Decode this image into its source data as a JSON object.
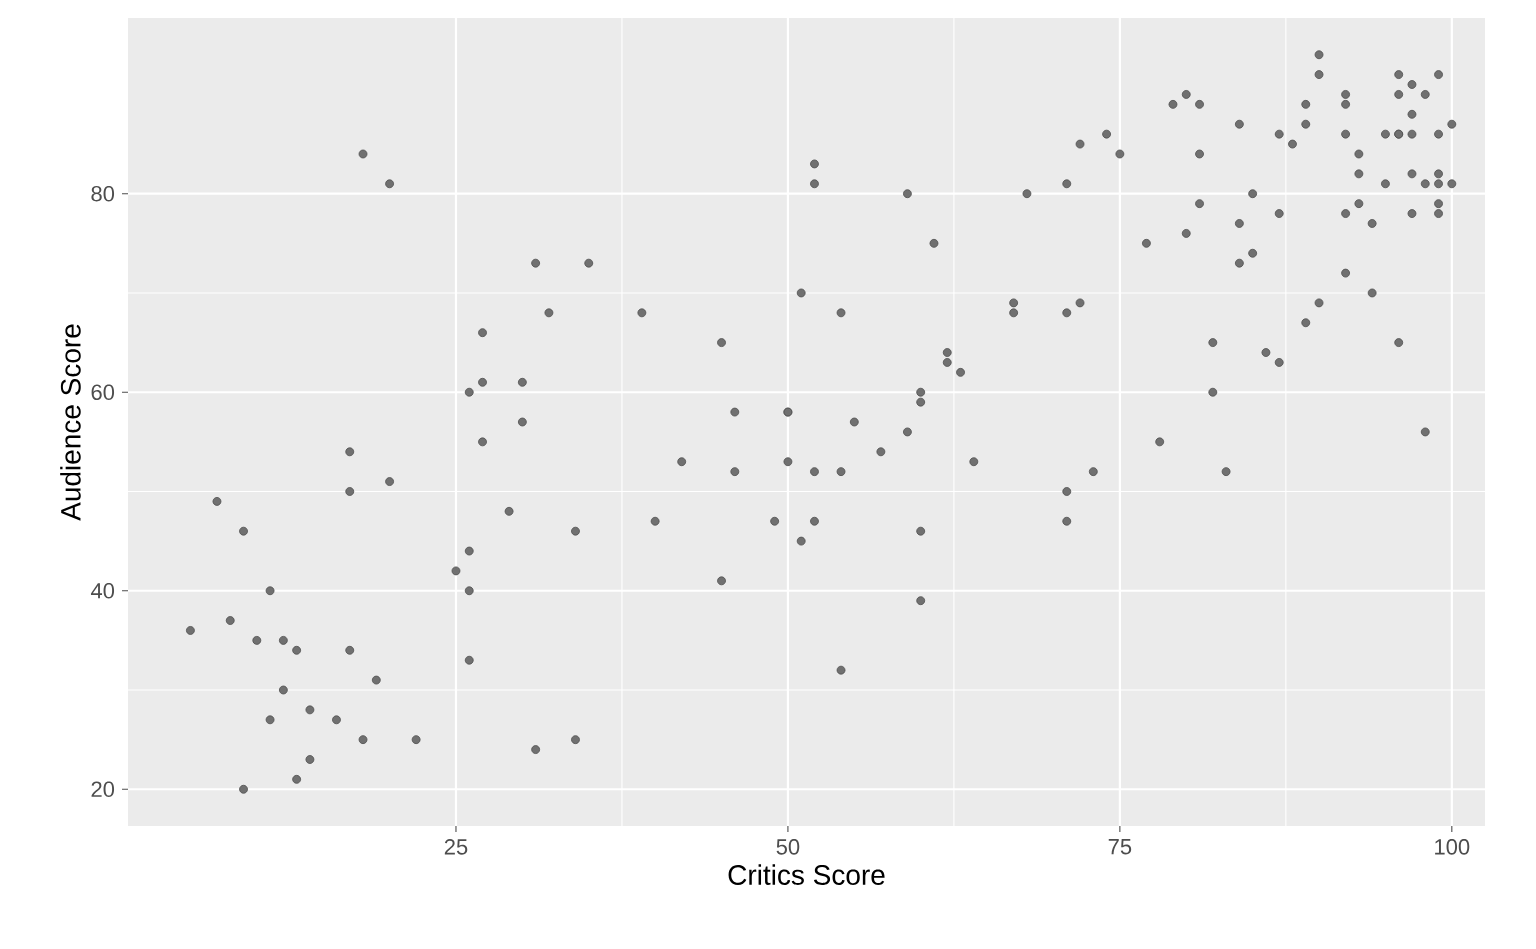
{
  "chart_data": {
    "type": "scatter",
    "xlabel": "Critics Score",
    "ylabel": "Audience Score",
    "xlim": [
      0.3,
      102.5
    ],
    "ylim": [
      16.3,
      97.7
    ],
    "xticks": [
      25,
      50,
      75,
      100
    ],
    "yticks": [
      20,
      40,
      60,
      80
    ],
    "grid": true,
    "marker": "circle",
    "color": "#707070",
    "x": [
      5,
      7,
      8,
      9,
      9,
      10,
      11,
      11,
      12,
      12,
      13,
      13,
      14,
      14,
      16,
      17,
      17,
      17,
      18,
      18,
      19,
      20,
      20,
      22,
      25,
      26,
      26,
      26,
      26,
      27,
      27,
      27,
      29,
      30,
      30,
      31,
      31,
      32,
      34,
      34,
      35,
      39,
      40,
      42,
      45,
      45,
      46,
      46,
      49,
      50,
      50,
      50,
      51,
      51,
      52,
      52,
      52,
      52,
      54,
      54,
      54,
      55,
      57,
      59,
      59,
      60,
      60,
      60,
      60,
      61,
      62,
      62,
      63,
      64,
      67,
      67,
      68,
      71,
      71,
      71,
      71,
      72,
      72,
      73,
      74,
      75,
      77,
      78,
      79,
      80,
      80,
      81,
      81,
      81,
      82,
      82,
      83,
      84,
      84,
      84,
      85,
      85,
      86,
      87,
      87,
      87,
      88,
      89,
      89,
      89,
      90,
      90,
      90,
      92,
      92,
      92,
      92,
      92,
      93,
      93,
      93,
      94,
      94,
      95,
      95,
      96,
      96,
      96,
      96,
      96,
      97,
      97,
      97,
      97,
      97,
      98,
      98,
      98,
      99,
      99,
      99,
      99,
      99,
      99,
      100,
      100
    ],
    "values": [
      36,
      49,
      37,
      46,
      20,
      35,
      40,
      27,
      35,
      30,
      34,
      21,
      28,
      23,
      27,
      54,
      50,
      34,
      84,
      25,
      31,
      81,
      51,
      25,
      42,
      60,
      44,
      40,
      33,
      66,
      61,
      55,
      48,
      61,
      57,
      73,
      24,
      68,
      46,
      25,
      73,
      68,
      47,
      53,
      65,
      41,
      58,
      52,
      47,
      58,
      58,
      53,
      45,
      70,
      83,
      81,
      52,
      47,
      68,
      52,
      32,
      57,
      54,
      80,
      56,
      60,
      59,
      46,
      39,
      75,
      64,
      63,
      62,
      53,
      69,
      68,
      80,
      81,
      68,
      50,
      47,
      85,
      69,
      52,
      86,
      84,
      75,
      55,
      89,
      90,
      76,
      89,
      84,
      79,
      65,
      60,
      52,
      87,
      77,
      73,
      80,
      74,
      64,
      86,
      78,
      63,
      85,
      89,
      87,
      67,
      94,
      92,
      69,
      90,
      89,
      86,
      78,
      72,
      84,
      82,
      79,
      77,
      70,
      86,
      81,
      92,
      90,
      86,
      86,
      65,
      91,
      88,
      86,
      82,
      78,
      90,
      81,
      56,
      92,
      86,
      82,
      81,
      79,
      78,
      87,
      81
    ]
  }
}
